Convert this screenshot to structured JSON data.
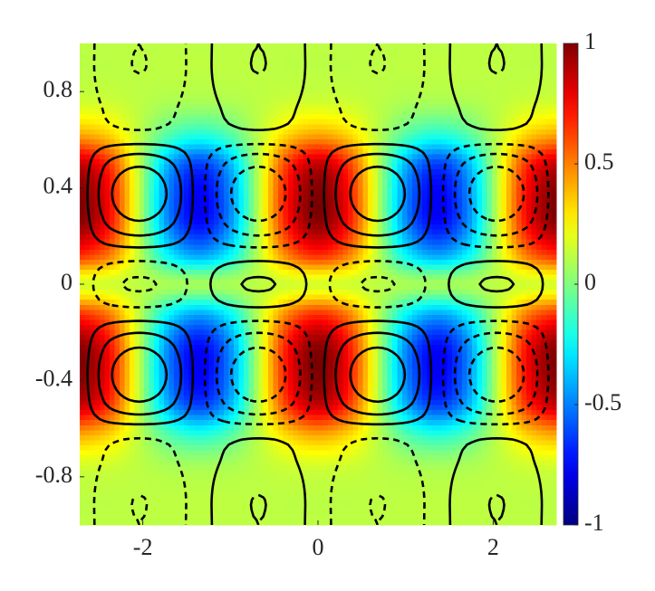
{
  "chart_data": {
    "type": "heatmap",
    "colormap": "jet",
    "clim": [
      -1,
      1
    ],
    "cticks": [
      -1,
      -0.5,
      0,
      0.5,
      1
    ],
    "xlim": [
      -2.72,
      2.72
    ],
    "ylim": [
      -1,
      1
    ],
    "xticks": [
      -2,
      0,
      2
    ],
    "yticks": [
      -0.8,
      -0.4,
      0,
      0.4,
      0.8
    ],
    "x": [
      -2.72,
      -2.38,
      -2.04,
      -1.7,
      -1.36,
      -1.02,
      -0.68,
      -0.34,
      0,
      0.34,
      0.68,
      1.02,
      1.36,
      1.7,
      2.04,
      2.38,
      2.72
    ],
    "y": [
      -1,
      -0.875,
      -0.75,
      -0.625,
      -0.5,
      -0.375,
      -0.25,
      -0.125,
      0,
      0.125,
      0.25,
      0.375,
      0.5,
      0.625,
      0.75,
      0.875,
      1
    ],
    "z": [
      [
        0.12,
        0.12,
        0.12,
        0.12,
        0.12,
        0.12,
        0.12,
        0.12,
        0.12,
        0.12,
        0.12,
        0.12,
        0.12,
        0.12,
        0.12,
        0.12,
        0.12
      ],
      [
        0.12,
        0.12,
        0.12,
        0.12,
        0.12,
        0.12,
        0.12,
        0.12,
        0.12,
        0.12,
        0.12,
        0.12,
        0.12,
        0.12,
        0.12,
        0.12,
        0.12
      ],
      [
        0.17,
        0.16,
        0.12,
        0.08,
        0.07,
        0.08,
        0.12,
        0.16,
        0.17,
        0.16,
        0.12,
        0.08,
        0.07,
        0.08,
        0.12,
        0.16,
        0.17
      ],
      [
        0.42,
        0.33,
        0.12,
        -0.09,
        -0.18,
        -0.09,
        0.12,
        0.33,
        0.42,
        0.33,
        0.12,
        -0.09,
        -0.18,
        -0.09,
        0.12,
        0.33,
        0.42
      ],
      [
        0.87,
        0.65,
        0.12,
        -0.41,
        -0.63,
        -0.41,
        0.12,
        0.65,
        0.87,
        0.65,
        0.12,
        -0.41,
        -0.63,
        -0.41,
        0.12,
        0.65,
        0.87
      ],
      [
        1,
        0.74,
        0.12,
        -0.5,
        -0.76,
        -0.5,
        0.12,
        0.74,
        1,
        0.74,
        0.12,
        -0.5,
        -0.76,
        -0.5,
        0.12,
        0.74,
        1
      ],
      [
        0.97,
        0.72,
        0.12,
        -0.48,
        -0.73,
        -0.48,
        0.12,
        0.72,
        0.97,
        0.72,
        0.12,
        -0.48,
        -0.73,
        -0.48,
        0.12,
        0.72,
        0.97
      ],
      [
        0.67,
        0.51,
        0.12,
        -0.27,
        -0.43,
        -0.27,
        0.12,
        0.51,
        0.67,
        0.51,
        0.12,
        -0.27,
        -0.43,
        -0.27,
        0.12,
        0.51,
        0.67
      ],
      [
        0.17,
        0.16,
        0.12,
        0.08,
        0.07,
        0.08,
        0.12,
        0.16,
        0.17,
        0.16,
        0.12,
        0.08,
        0.07,
        0.08,
        0.12,
        0.16,
        0.17
      ],
      [
        0.67,
        0.51,
        0.12,
        -0.27,
        -0.43,
        -0.27,
        0.12,
        0.51,
        0.67,
        0.51,
        0.12,
        -0.27,
        -0.43,
        -0.27,
        0.12,
        0.51,
        0.67
      ],
      [
        0.97,
        0.72,
        0.12,
        -0.48,
        -0.73,
        -0.48,
        0.12,
        0.72,
        0.97,
        0.72,
        0.12,
        -0.48,
        -0.73,
        -0.48,
        0.12,
        0.72,
        0.97
      ],
      [
        1,
        0.74,
        0.12,
        -0.5,
        -0.76,
        -0.5,
        0.12,
        0.74,
        1,
        0.74,
        0.12,
        -0.5,
        -0.76,
        -0.5,
        0.12,
        0.74,
        1
      ],
      [
        0.87,
        0.65,
        0.12,
        -0.41,
        -0.63,
        -0.41,
        0.12,
        0.65,
        0.87,
        0.65,
        0.12,
        -0.41,
        -0.63,
        -0.41,
        0.12,
        0.65,
        0.87
      ],
      [
        0.42,
        0.33,
        0.12,
        -0.09,
        -0.18,
        -0.09,
        0.12,
        0.33,
        0.42,
        0.33,
        0.12,
        -0.09,
        -0.18,
        -0.09,
        0.12,
        0.33,
        0.42
      ],
      [
        0.17,
        0.16,
        0.12,
        0.08,
        0.07,
        0.08,
        0.12,
        0.16,
        0.17,
        0.16,
        0.12,
        0.08,
        0.07,
        0.08,
        0.12,
        0.16,
        0.17
      ],
      [
        0.12,
        0.12,
        0.12,
        0.12,
        0.12,
        0.12,
        0.12,
        0.12,
        0.12,
        0.12,
        0.12,
        0.12,
        0.12,
        0.12,
        0.12,
        0.12,
        0.12
      ],
      [
        0.12,
        0.12,
        0.12,
        0.12,
        0.12,
        0.12,
        0.12,
        0.12,
        0.12,
        0.12,
        0.12,
        0.12,
        0.12,
        0.12,
        0.12,
        0.12,
        0.12
      ]
    ],
    "contour_color": "#000000",
    "contour_levels": [
      -0.75,
      -0.45,
      -0.15,
      0.15,
      0.45,
      0.75
    ],
    "contour_z": [
      [
        0,
        -0.32,
        -0.45,
        -0.32,
        0,
        0.32,
        0.45,
        0.32,
        0,
        -0.32,
        -0.45,
        -0.32,
        0,
        0.32,
        0.45,
        0.32,
        0
      ],
      [
        0,
        -0.32,
        -0.45,
        -0.32,
        0,
        0.32,
        0.45,
        0.32,
        0,
        -0.32,
        -0.45,
        -0.32,
        0,
        0.32,
        0.45,
        0.32,
        0
      ],
      [
        0,
        -0.21,
        -0.3,
        -0.21,
        0,
        0.21,
        0.3,
        0.21,
        0,
        -0.21,
        -0.3,
        -0.21,
        0,
        0.21,
        0.3,
        0.21,
        0
      ],
      [
        0,
        -0.07,
        -0.1,
        -0.07,
        0,
        0.07,
        0.1,
        0.07,
        0,
        -0.07,
        -0.1,
        -0.07,
        0,
        0.07,
        0.1,
        0.07,
        0
      ],
      [
        0,
        0.5,
        0.7,
        0.5,
        0,
        -0.5,
        -0.7,
        -0.5,
        0,
        0.5,
        0.7,
        0.5,
        0,
        -0.5,
        -0.7,
        -0.5,
        0
      ],
      [
        0,
        0.71,
        1,
        0.71,
        0,
        -0.71,
        -1,
        -0.71,
        0,
        0.71,
        1,
        0.71,
        0,
        -0.71,
        -1,
        -0.71,
        0
      ],
      [
        0,
        0.5,
        0.7,
        0.5,
        0,
        -0.5,
        -0.7,
        -0.5,
        0,
        0.5,
        0.7,
        0.5,
        0,
        -0.5,
        -0.7,
        -0.5,
        0
      ],
      [
        0,
        0,
        0,
        0,
        0,
        0,
        0,
        0,
        0,
        0,
        0,
        0,
        0,
        0,
        0,
        0,
        0
      ],
      [
        0,
        -0.36,
        -0.5,
        -0.36,
        0,
        0.36,
        0.5,
        0.36,
        0,
        -0.36,
        -0.5,
        -0.36,
        0,
        0.36,
        0.5,
        0.36,
        0
      ],
      [
        0,
        0,
        0,
        0,
        0,
        0,
        0,
        0,
        0,
        0,
        0,
        0,
        0,
        0,
        0,
        0,
        0
      ],
      [
        0,
        0.5,
        0.7,
        0.5,
        0,
        -0.5,
        -0.7,
        -0.5,
        0,
        0.5,
        0.7,
        0.5,
        0,
        -0.5,
        -0.7,
        -0.5,
        0
      ],
      [
        0,
        0.71,
        1,
        0.71,
        0,
        -0.71,
        -1,
        -0.71,
        0,
        0.71,
        1,
        0.71,
        0,
        -0.71,
        -1,
        -0.71,
        0
      ],
      [
        0,
        0.5,
        0.7,
        0.5,
        0,
        -0.5,
        -0.7,
        -0.5,
        0,
        0.5,
        0.7,
        0.5,
        0,
        -0.5,
        -0.7,
        -0.5,
        0
      ],
      [
        0,
        -0.07,
        -0.1,
        -0.07,
        0,
        0.07,
        0.1,
        0.07,
        0,
        -0.07,
        -0.1,
        -0.07,
        0,
        0.07,
        0.1,
        0.07,
        0
      ],
      [
        0,
        -0.21,
        -0.3,
        -0.21,
        0,
        0.21,
        0.3,
        0.21,
        0,
        -0.21,
        -0.3,
        -0.21,
        0,
        0.21,
        0.3,
        0.21,
        0
      ],
      [
        0,
        -0.32,
        -0.45,
        -0.32,
        0,
        0.32,
        0.45,
        0.32,
        0,
        -0.32,
        -0.45,
        -0.32,
        0,
        0.32,
        0.45,
        0.32,
        0
      ],
      [
        0,
        -0.32,
        -0.45,
        -0.32,
        0,
        0.32,
        0.45,
        0.32,
        0,
        -0.32,
        -0.45,
        -0.32,
        0,
        0.32,
        0.45,
        0.32,
        0
      ]
    ]
  }
}
